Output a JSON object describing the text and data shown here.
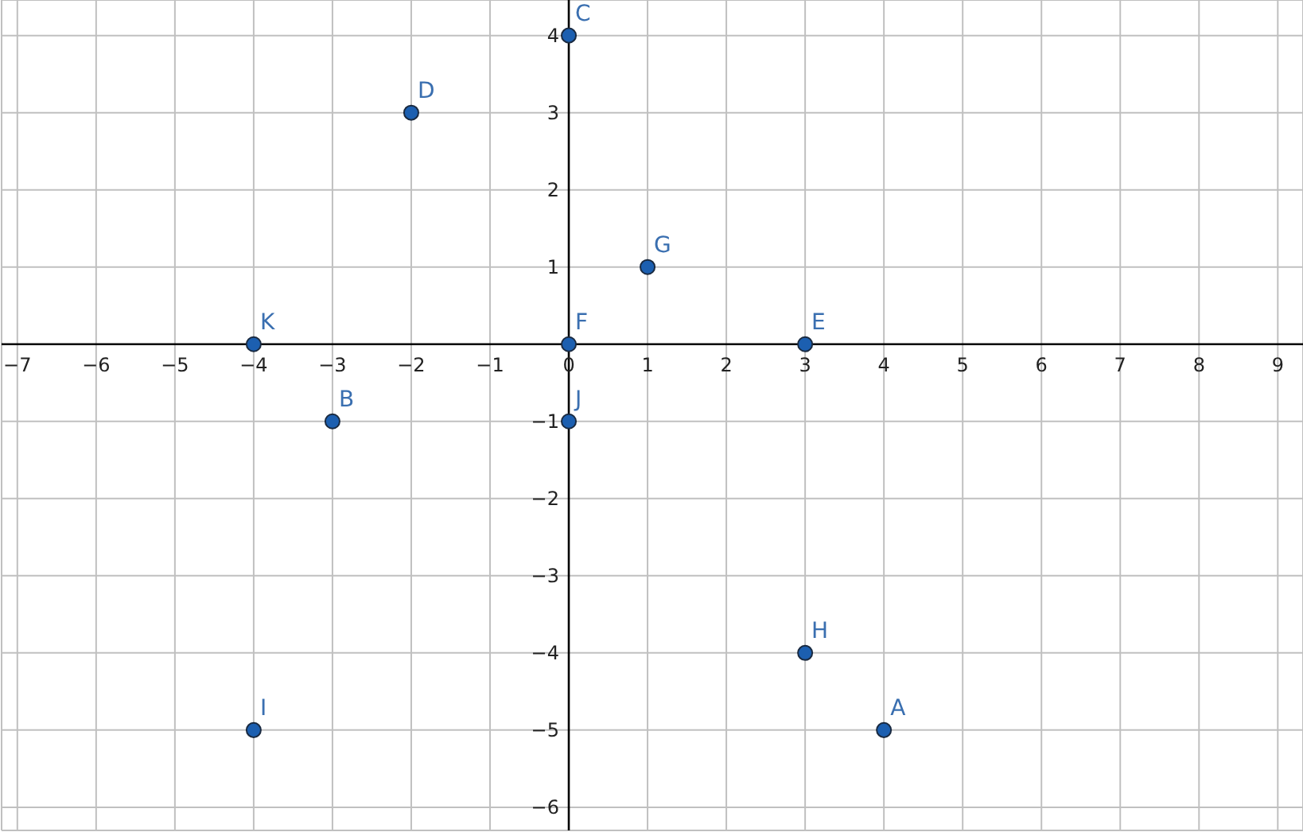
{
  "chart_data": {
    "type": "scatter",
    "x": [
      4,
      -3,
      0,
      -2,
      3,
      0,
      1,
      3,
      -4,
      0,
      -4
    ],
    "values": [
      -5,
      -1,
      4,
      3,
      0,
      0,
      1,
      -4,
      -5,
      -1,
      0
    ],
    "value_labels": [
      "A",
      "B",
      "C",
      "D",
      "E",
      "F",
      "G",
      "H",
      "I",
      "J",
      "K"
    ],
    "color": "#1c5fb0",
    "marker": "circle",
    "grid": true,
    "xlim": [
      -7.2,
      9.32
    ],
    "ylim": [
      -6.3,
      4.46
    ],
    "xticks": [
      {
        "value": -7,
        "label": "−7"
      },
      {
        "value": -6,
        "label": "−6"
      },
      {
        "value": -5,
        "label": "−5"
      },
      {
        "value": -4,
        "label": "−4"
      },
      {
        "value": -3,
        "label": "−3"
      },
      {
        "value": -2,
        "label": "−2"
      },
      {
        "value": -1,
        "label": "−1"
      },
      0,
      1,
      2,
      3,
      4,
      5,
      6,
      7,
      8,
      9
    ],
    "yticks": [
      {
        "value": -6,
        "label": "−6"
      },
      {
        "value": -5,
        "label": "−5"
      },
      {
        "value": -4,
        "label": "−4"
      },
      {
        "value": -3,
        "label": "−3"
      },
      {
        "value": -2,
        "label": "−2"
      },
      {
        "value": -1,
        "label": "−1"
      },
      1,
      2,
      3,
      4
    ]
  }
}
